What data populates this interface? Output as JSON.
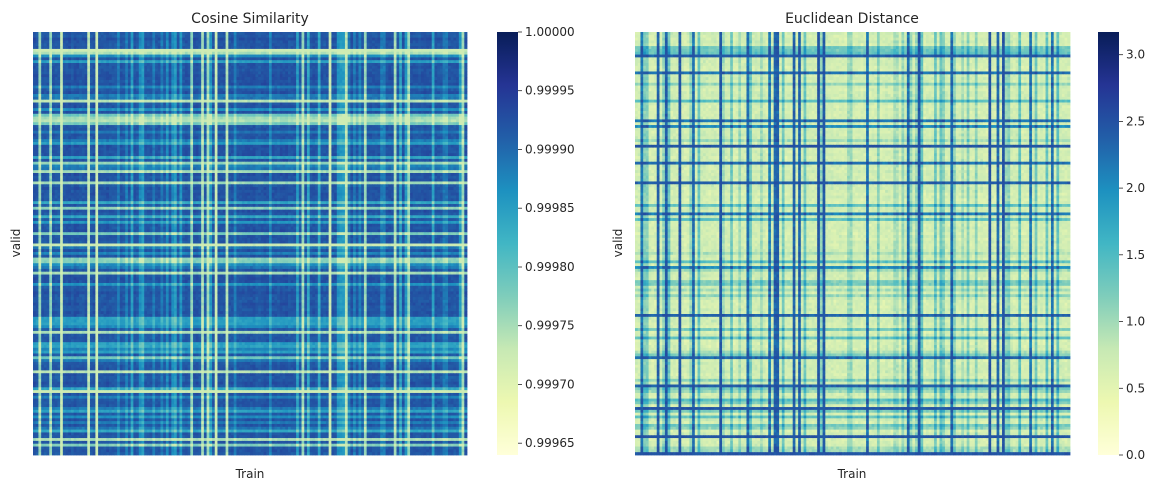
{
  "chart_data": [
    {
      "type": "heatmap",
      "title": "Cosine Similarity",
      "xlabel": "Train",
      "ylabel": "valid",
      "colormap": "YlGnBu",
      "vmin": 0.99964,
      "vmax": 1.0,
      "colorbar_ticks": [
        "1.00000",
        "0.99995",
        "0.99990",
        "0.99985",
        "0.99980",
        "0.99975",
        "0.99970",
        "0.99965"
      ],
      "colorbar_tick_values": [
        1.0,
        0.99995,
        0.9999,
        0.99985,
        0.9998,
        0.99975,
        0.9997,
        0.99965
      ],
      "cell_value_typical": 0.99994,
      "pattern": "mostly dark blue with scattered lighter teal/cyan row and column stripes"
    },
    {
      "type": "heatmap",
      "title": "Euclidean Distance",
      "xlabel": "Train",
      "ylabel": "valid",
      "colormap": "YlGnBu",
      "vmin": 0.0,
      "vmax": 3.17,
      "colorbar_ticks": [
        "3.0",
        "2.5",
        "2.0",
        "1.5",
        "1.0",
        "0.5",
        "0.0"
      ],
      "colorbar_tick_values": [
        3.0,
        2.5,
        2.0,
        1.5,
        1.0,
        0.5,
        0.0
      ],
      "cell_value_typical": 0.4,
      "pattern": "mostly pale yellow-green with scattered blue row and column stripes"
    }
  ]
}
